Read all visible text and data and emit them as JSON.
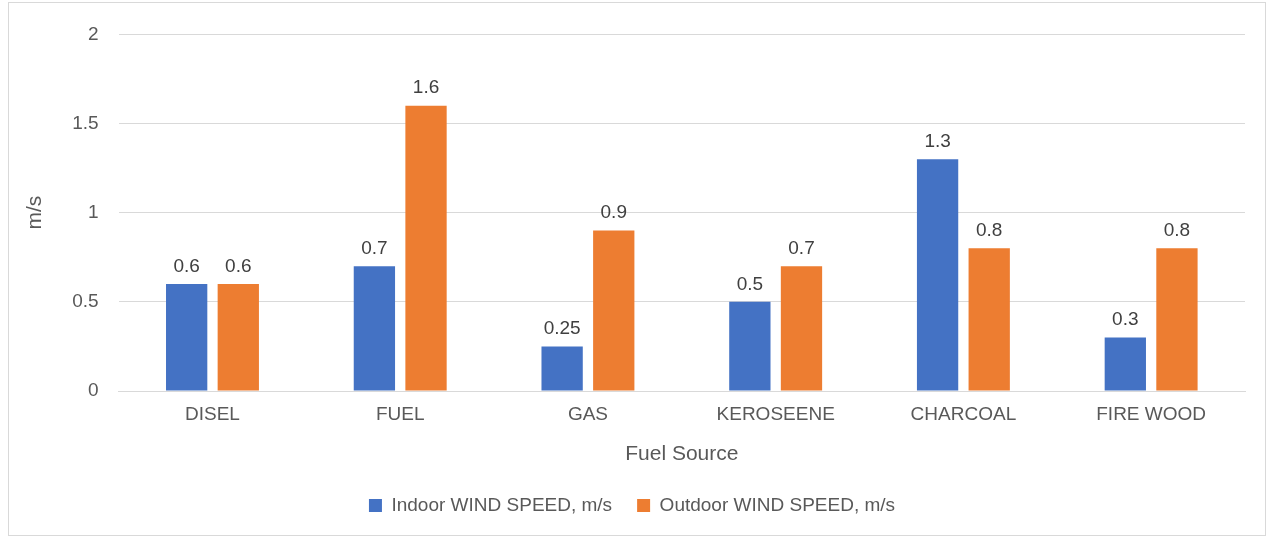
{
  "chart_data": {
    "type": "bar",
    "xlabel": "Fuel Source",
    "ylabel": "m/s",
    "categories": [
      "DISEL",
      "FUEL",
      "GAS",
      "KEROSEENE",
      "CHARCOAL",
      "FIRE WOOD"
    ],
    "series": [
      {
        "name": "Indoor WIND SPEED, m/s",
        "color": "#4472c4",
        "values": [
          0.6,
          0.7,
          0.25,
          0.5,
          1.3,
          0.3
        ]
      },
      {
        "name": "Outdoor WIND SPEED, m/s",
        "color": "#ed7d31",
        "values": [
          0.6,
          1.6,
          0.9,
          0.7,
          0.8,
          0.8
        ]
      }
    ],
    "ylim": [
      0,
      2
    ],
    "yticks": [
      0,
      0.5,
      1,
      1.5,
      2
    ],
    "grid": "y",
    "legend": "bottom",
    "data_labels": true
  }
}
